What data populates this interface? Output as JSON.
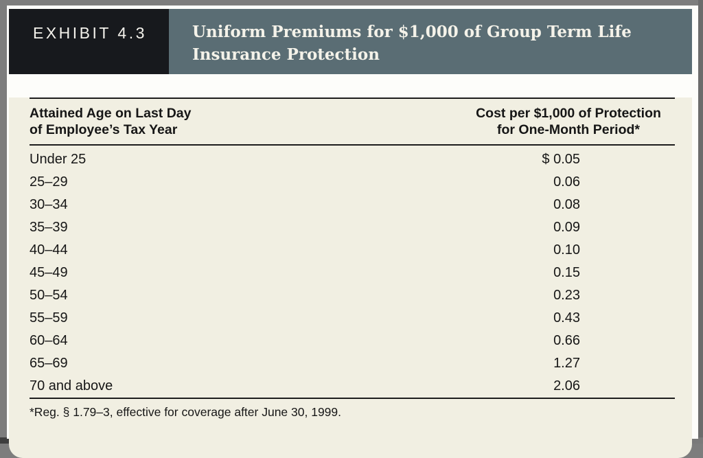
{
  "exhibit": {
    "tag": "EXHIBIT 4.3",
    "title_line1": "Uniform Premiums for $1,000 of Group Term Life",
    "title_line2": "Insurance Protection"
  },
  "table": {
    "col_age_header_line1": "Attained Age on Last Day",
    "col_age_header_line2": "of Employee’s Tax Year",
    "col_cost_header_line1": "Cost per $1,000 of Protection",
    "col_cost_header_line2": "for One-Month Period*",
    "rows": [
      {
        "age": "Under 25",
        "cost": "$ 0.05"
      },
      {
        "age": "25–29",
        "cost": "0.06"
      },
      {
        "age": "30–34",
        "cost": "0.08"
      },
      {
        "age": "35–39",
        "cost": "0.09"
      },
      {
        "age": "40–44",
        "cost": "0.10"
      },
      {
        "age": "45–49",
        "cost": "0.15"
      },
      {
        "age": "50–54",
        "cost": "0.23"
      },
      {
        "age": "55–59",
        "cost": "0.43"
      },
      {
        "age": "60–64",
        "cost": "0.66"
      },
      {
        "age": "65–69",
        "cost": "1.27"
      },
      {
        "age": "70 and above",
        "cost": "2.06"
      }
    ]
  },
  "footnote": "*Reg. § 1.79–3, effective for coverage after June 30, 1999.",
  "colors": {
    "tag_background": "#17191d",
    "title_background": "#5a6d74",
    "content_background": "#f1efe2",
    "page_background": "#7d7d7d",
    "text": "#161616"
  }
}
